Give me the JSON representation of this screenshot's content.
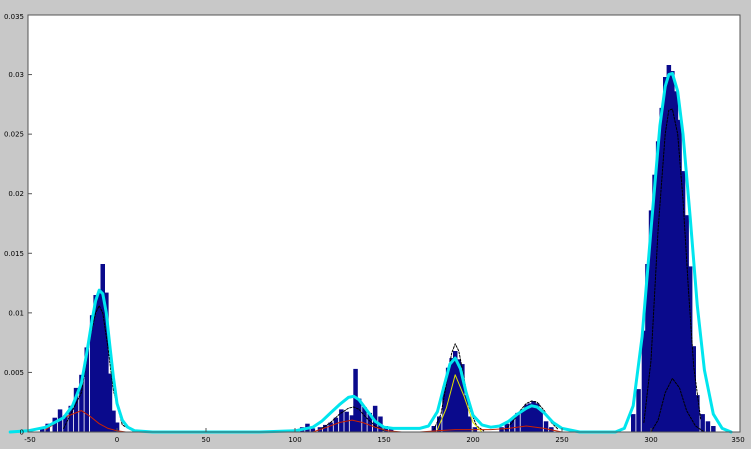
{
  "chart_data": {
    "type": "bar",
    "title": "",
    "xlabel": "",
    "ylabel": "",
    "xlim": [
      -50,
      350
    ],
    "ylim": [
      0,
      0.035
    ],
    "grid": false,
    "x_ticks": [
      {
        "value": -50,
        "label": "-50"
      },
      {
        "value": 0,
        "label": "0"
      },
      {
        "value": 50,
        "label": "50"
      },
      {
        "value": 100,
        "label": "100"
      },
      {
        "value": 150,
        "label": "150"
      },
      {
        "value": 200,
        "label": "200"
      },
      {
        "value": 250,
        "label": "250"
      },
      {
        "value": 300,
        "label": "300"
      },
      {
        "value": 350,
        "label": "350"
      }
    ],
    "y_ticks": [
      {
        "value": 0,
        "label": "0"
      },
      {
        "value": 0.005,
        "label": "0.005"
      },
      {
        "value": 0.01,
        "label": "0.01"
      },
      {
        "value": 0.015,
        "label": "0.015"
      },
      {
        "value": 0.02,
        "label": "0.02"
      },
      {
        "value": 0.025,
        "label": "0.025"
      },
      {
        "value": 0.03,
        "label": "0.03"
      },
      {
        "value": 0.035,
        "label": "0.035"
      }
    ],
    "histogram": {
      "bin_width": 2.5,
      "color": "#0a0a8c",
      "bins": [
        [
          -42,
          0.0003
        ],
        [
          -39,
          0.0007
        ],
        [
          -35,
          0.0012
        ],
        [
          -32,
          0.0019
        ],
        [
          -29,
          0.0014
        ],
        [
          -26,
          0.0022
        ],
        [
          -23,
          0.0037
        ],
        [
          -20,
          0.0048
        ],
        [
          -17,
          0.0071
        ],
        [
          -14,
          0.0098
        ],
        [
          -12,
          0.0115
        ],
        [
          -10,
          0.0117
        ],
        [
          -8,
          0.0141
        ],
        [
          -6,
          0.0117
        ],
        [
          -4,
          0.0049
        ],
        [
          -2,
          0.0018
        ],
        [
          0,
          0.0008
        ],
        [
          104,
          0.0004
        ],
        [
          107,
          0.0007
        ],
        [
          110,
          0.0003
        ],
        [
          114,
          0.0004
        ],
        [
          117,
          0.0006
        ],
        [
          120,
          0.0008
        ],
        [
          123,
          0.0012
        ],
        [
          126,
          0.0019
        ],
        [
          129,
          0.0017
        ],
        [
          132,
          0.0014
        ],
        [
          134,
          0.0053
        ],
        [
          136,
          0.0028
        ],
        [
          139,
          0.0021
        ],
        [
          142,
          0.0016
        ],
        [
          145,
          0.0022
        ],
        [
          148,
          0.0013
        ],
        [
          151,
          0.0005
        ],
        [
          154,
          0.0003
        ],
        [
          178,
          0.0005
        ],
        [
          181,
          0.0013
        ],
        [
          184,
          0.0038
        ],
        [
          186,
          0.0054
        ],
        [
          188,
          0.0062
        ],
        [
          190,
          0.0068
        ],
        [
          192,
          0.0061
        ],
        [
          194,
          0.0057
        ],
        [
          196,
          0.0031
        ],
        [
          198,
          0.0013
        ],
        [
          201,
          0.0004
        ],
        [
          216,
          0.0004
        ],
        [
          219,
          0.0007
        ],
        [
          222,
          0.0011
        ],
        [
          225,
          0.0016
        ],
        [
          228,
          0.0019
        ],
        [
          230,
          0.0023
        ],
        [
          232,
          0.0024
        ],
        [
          234,
          0.0026
        ],
        [
          236,
          0.0024
        ],
        [
          238,
          0.0018
        ],
        [
          241,
          0.0009
        ],
        [
          244,
          0.0004
        ],
        [
          290,
          0.0015
        ],
        [
          293,
          0.0036
        ],
        [
          296,
          0.0085
        ],
        [
          298,
          0.0141
        ],
        [
          300,
          0.0186
        ],
        [
          302,
          0.0216
        ],
        [
          304,
          0.0244
        ],
        [
          306,
          0.0272
        ],
        [
          308,
          0.0298
        ],
        [
          310,
          0.0308
        ],
        [
          312,
          0.0303
        ],
        [
          314,
          0.0286
        ],
        [
          316,
          0.0262
        ],
        [
          318,
          0.0219
        ],
        [
          320,
          0.0182
        ],
        [
          322,
          0.0139
        ],
        [
          324,
          0.0072
        ],
        [
          326,
          0.0031
        ],
        [
          329,
          0.0015
        ],
        [
          332,
          0.0009
        ],
        [
          335,
          0.0005
        ]
      ]
    },
    "series": [
      {
        "style": "solid",
        "color": "#00e5ee",
        "width": 3,
        "x": [
          -60,
          -50,
          -40,
          -30,
          -25,
          -20,
          -17,
          -14,
          -12,
          -10,
          -8,
          -6,
          -4,
          -2,
          0,
          3,
          6,
          10,
          20,
          40,
          80,
          100,
          110,
          115,
          120,
          125,
          130,
          133,
          136,
          140,
          145,
          150,
          155,
          160,
          170,
          175,
          180,
          184,
          187,
          190,
          193,
          196,
          200,
          205,
          210,
          215,
          220,
          225,
          230,
          233,
          236,
          240,
          245,
          250,
          260,
          270,
          280,
          285,
          290,
          295,
          300,
          305,
          308,
          310,
          312,
          315,
          318,
          322,
          326,
          330,
          335,
          340,
          345
        ],
        "y": [
          0,
          0.0001,
          0.0004,
          0.0012,
          0.0022,
          0.0041,
          0.0066,
          0.0094,
          0.011,
          0.0119,
          0.0116,
          0.01,
          0.0072,
          0.0046,
          0.0024,
          0.001,
          0.0004,
          0.0001,
          0,
          0,
          0,
          0.0001,
          0.0004,
          0.0009,
          0.0016,
          0.0023,
          0.0029,
          0.003,
          0.0027,
          0.0019,
          0.0009,
          0.0004,
          0.0003,
          0.0003,
          0.0003,
          0.0005,
          0.0017,
          0.004,
          0.0057,
          0.0062,
          0.0053,
          0.0034,
          0.0014,
          0.0006,
          0.0004,
          0.0005,
          0.0009,
          0.0015,
          0.002,
          0.0022,
          0.0021,
          0.0016,
          0.0008,
          0.0003,
          0,
          0,
          0,
          0.0003,
          0.0022,
          0.008,
          0.017,
          0.0257,
          0.029,
          0.03,
          0.0301,
          0.0286,
          0.025,
          0.018,
          0.0106,
          0.0052,
          0.0015,
          0.0003,
          0
        ]
      },
      {
        "style": "dashed",
        "color": "#000000",
        "width": 1,
        "x": [
          -30,
          -20,
          -15,
          -12,
          -10,
          -8,
          -5,
          -2,
          3,
          10
        ],
        "y": [
          0.0003,
          0.0033,
          0.008,
          0.01,
          0.0106,
          0.01,
          0.007,
          0.0035,
          0.0006,
          0
        ]
      },
      {
        "style": "dashed",
        "color": "#000000",
        "width": 1,
        "x": [
          115,
          120,
          125,
          130,
          133,
          136,
          140,
          145,
          150
        ],
        "y": [
          0.0003,
          0.0008,
          0.0015,
          0.002,
          0.0021,
          0.0019,
          0.0012,
          0.0005,
          0.0001
        ]
      },
      {
        "style": "dashed",
        "color": "#000000",
        "width": 1,
        "x": [
          178,
          182,
          185,
          188,
          190,
          192,
          195,
          198,
          202,
          206
        ],
        "y": [
          0.0002,
          0.0015,
          0.004,
          0.0066,
          0.0074,
          0.0068,
          0.0045,
          0.002,
          0.0005,
          0.0001
        ]
      },
      {
        "style": "dashed",
        "color": "#000000",
        "width": 1,
        "x": [
          218,
          222,
          226,
          230,
          233,
          236,
          240,
          244,
          248
        ],
        "y": [
          0.0002,
          0.0008,
          0.0017,
          0.0024,
          0.0026,
          0.0025,
          0.0018,
          0.0008,
          0.0002
        ]
      },
      {
        "style": "dashed",
        "color": "#000000",
        "width": 1,
        "x": [
          296,
          300,
          304,
          308,
          310,
          312,
          315,
          318,
          321,
          324,
          328
        ],
        "y": [
          0.0008,
          0.006,
          0.017,
          0.025,
          0.027,
          0.0271,
          0.025,
          0.0195,
          0.012,
          0.0055,
          0.001
        ]
      },
      {
        "style": "dashed",
        "color": "#000000",
        "width": 1,
        "x": [
          300,
          304,
          308,
          312,
          316,
          320,
          325,
          330
        ],
        "y": [
          0,
          0.001,
          0.0033,
          0.0045,
          0.0037,
          0.0018,
          0.0005,
          0
        ]
      },
      {
        "style": "solid",
        "color": "#cc2200",
        "width": 1,
        "x": [
          -40,
          -30,
          -20,
          -15,
          -10,
          -5,
          0,
          5
        ],
        "y": [
          0.0002,
          0.0012,
          0.0018,
          0.0013,
          0.0007,
          0.0003,
          0.0001,
          0
        ]
      },
      {
        "style": "solid",
        "color": "#cc2200",
        "width": 1,
        "x": [
          110,
          118,
          125,
          132,
          138,
          145,
          152,
          160
        ],
        "y": [
          0,
          0.0004,
          0.0008,
          0.001,
          0.0008,
          0.0004,
          0.0001,
          0
        ]
      },
      {
        "style": "solid",
        "color": "#cc2200",
        "width": 1,
        "x": [
          170,
          180,
          190,
          200,
          210,
          220,
          230,
          240,
          250
        ],
        "y": [
          0,
          0.0001,
          0.0002,
          0.0002,
          0.0002,
          0.0003,
          0.0005,
          0.0003,
          0
        ]
      },
      {
        "style": "solid",
        "color": "#e0e000",
        "width": 1,
        "x": [
          180,
          185,
          190,
          195,
          200,
          205
        ],
        "y": [
          0.0002,
          0.002,
          0.0048,
          0.003,
          0.0008,
          0
        ]
      }
    ]
  }
}
